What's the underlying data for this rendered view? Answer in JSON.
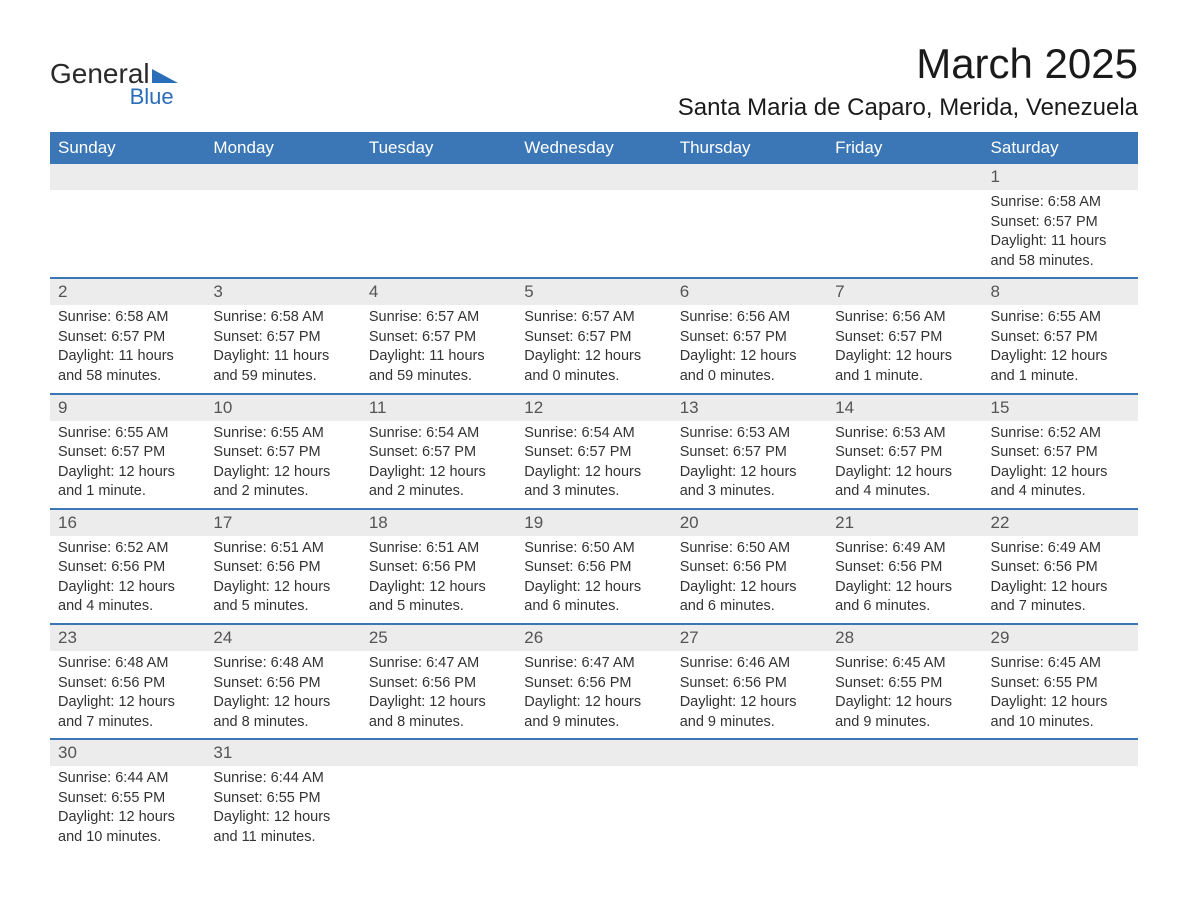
{
  "logo": {
    "word1": "General",
    "word2": "Blue"
  },
  "title": "March 2025",
  "location": "Santa Maria de Caparo, Merida, Venezuela",
  "colors": {
    "header_bg": "#3b77b7",
    "header_text": "#ffffff",
    "daynum_bg": "#ececec",
    "row_border": "#3b77b7",
    "body_text": "#333333",
    "logo_blue": "#2a6db8"
  },
  "typography": {
    "title_fontsize": 42,
    "location_fontsize": 24,
    "header_fontsize": 17,
    "daynum_fontsize": 17,
    "cell_fontsize": 14.5
  },
  "day_headers": [
    "Sunday",
    "Monday",
    "Tuesday",
    "Wednesday",
    "Thursday",
    "Friday",
    "Saturday"
  ],
  "weeks": [
    {
      "nums": [
        "",
        "",
        "",
        "",
        "",
        "",
        "1"
      ],
      "cells": [
        null,
        null,
        null,
        null,
        null,
        null,
        {
          "sunrise": "Sunrise: 6:58 AM",
          "sunset": "Sunset: 6:57 PM",
          "day1": "Daylight: 11 hours",
          "day2": "and 58 minutes."
        }
      ]
    },
    {
      "nums": [
        "2",
        "3",
        "4",
        "5",
        "6",
        "7",
        "8"
      ],
      "cells": [
        {
          "sunrise": "Sunrise: 6:58 AM",
          "sunset": "Sunset: 6:57 PM",
          "day1": "Daylight: 11 hours",
          "day2": "and 58 minutes."
        },
        {
          "sunrise": "Sunrise: 6:58 AM",
          "sunset": "Sunset: 6:57 PM",
          "day1": "Daylight: 11 hours",
          "day2": "and 59 minutes."
        },
        {
          "sunrise": "Sunrise: 6:57 AM",
          "sunset": "Sunset: 6:57 PM",
          "day1": "Daylight: 11 hours",
          "day2": "and 59 minutes."
        },
        {
          "sunrise": "Sunrise: 6:57 AM",
          "sunset": "Sunset: 6:57 PM",
          "day1": "Daylight: 12 hours",
          "day2": "and 0 minutes."
        },
        {
          "sunrise": "Sunrise: 6:56 AM",
          "sunset": "Sunset: 6:57 PM",
          "day1": "Daylight: 12 hours",
          "day2": "and 0 minutes."
        },
        {
          "sunrise": "Sunrise: 6:56 AM",
          "sunset": "Sunset: 6:57 PM",
          "day1": "Daylight: 12 hours",
          "day2": "and 1 minute."
        },
        {
          "sunrise": "Sunrise: 6:55 AM",
          "sunset": "Sunset: 6:57 PM",
          "day1": "Daylight: 12 hours",
          "day2": "and 1 minute."
        }
      ]
    },
    {
      "nums": [
        "9",
        "10",
        "11",
        "12",
        "13",
        "14",
        "15"
      ],
      "cells": [
        {
          "sunrise": "Sunrise: 6:55 AM",
          "sunset": "Sunset: 6:57 PM",
          "day1": "Daylight: 12 hours",
          "day2": "and 1 minute."
        },
        {
          "sunrise": "Sunrise: 6:55 AM",
          "sunset": "Sunset: 6:57 PM",
          "day1": "Daylight: 12 hours",
          "day2": "and 2 minutes."
        },
        {
          "sunrise": "Sunrise: 6:54 AM",
          "sunset": "Sunset: 6:57 PM",
          "day1": "Daylight: 12 hours",
          "day2": "and 2 minutes."
        },
        {
          "sunrise": "Sunrise: 6:54 AM",
          "sunset": "Sunset: 6:57 PM",
          "day1": "Daylight: 12 hours",
          "day2": "and 3 minutes."
        },
        {
          "sunrise": "Sunrise: 6:53 AM",
          "sunset": "Sunset: 6:57 PM",
          "day1": "Daylight: 12 hours",
          "day2": "and 3 minutes."
        },
        {
          "sunrise": "Sunrise: 6:53 AM",
          "sunset": "Sunset: 6:57 PM",
          "day1": "Daylight: 12 hours",
          "day2": "and 4 minutes."
        },
        {
          "sunrise": "Sunrise: 6:52 AM",
          "sunset": "Sunset: 6:57 PM",
          "day1": "Daylight: 12 hours",
          "day2": "and 4 minutes."
        }
      ]
    },
    {
      "nums": [
        "16",
        "17",
        "18",
        "19",
        "20",
        "21",
        "22"
      ],
      "cells": [
        {
          "sunrise": "Sunrise: 6:52 AM",
          "sunset": "Sunset: 6:56 PM",
          "day1": "Daylight: 12 hours",
          "day2": "and 4 minutes."
        },
        {
          "sunrise": "Sunrise: 6:51 AM",
          "sunset": "Sunset: 6:56 PM",
          "day1": "Daylight: 12 hours",
          "day2": "and 5 minutes."
        },
        {
          "sunrise": "Sunrise: 6:51 AM",
          "sunset": "Sunset: 6:56 PM",
          "day1": "Daylight: 12 hours",
          "day2": "and 5 minutes."
        },
        {
          "sunrise": "Sunrise: 6:50 AM",
          "sunset": "Sunset: 6:56 PM",
          "day1": "Daylight: 12 hours",
          "day2": "and 6 minutes."
        },
        {
          "sunrise": "Sunrise: 6:50 AM",
          "sunset": "Sunset: 6:56 PM",
          "day1": "Daylight: 12 hours",
          "day2": "and 6 minutes."
        },
        {
          "sunrise": "Sunrise: 6:49 AM",
          "sunset": "Sunset: 6:56 PM",
          "day1": "Daylight: 12 hours",
          "day2": "and 6 minutes."
        },
        {
          "sunrise": "Sunrise: 6:49 AM",
          "sunset": "Sunset: 6:56 PM",
          "day1": "Daylight: 12 hours",
          "day2": "and 7 minutes."
        }
      ]
    },
    {
      "nums": [
        "23",
        "24",
        "25",
        "26",
        "27",
        "28",
        "29"
      ],
      "cells": [
        {
          "sunrise": "Sunrise: 6:48 AM",
          "sunset": "Sunset: 6:56 PM",
          "day1": "Daylight: 12 hours",
          "day2": "and 7 minutes."
        },
        {
          "sunrise": "Sunrise: 6:48 AM",
          "sunset": "Sunset: 6:56 PM",
          "day1": "Daylight: 12 hours",
          "day2": "and 8 minutes."
        },
        {
          "sunrise": "Sunrise: 6:47 AM",
          "sunset": "Sunset: 6:56 PM",
          "day1": "Daylight: 12 hours",
          "day2": "and 8 minutes."
        },
        {
          "sunrise": "Sunrise: 6:47 AM",
          "sunset": "Sunset: 6:56 PM",
          "day1": "Daylight: 12 hours",
          "day2": "and 9 minutes."
        },
        {
          "sunrise": "Sunrise: 6:46 AM",
          "sunset": "Sunset: 6:56 PM",
          "day1": "Daylight: 12 hours",
          "day2": "and 9 minutes."
        },
        {
          "sunrise": "Sunrise: 6:45 AM",
          "sunset": "Sunset: 6:55 PM",
          "day1": "Daylight: 12 hours",
          "day2": "and 9 minutes."
        },
        {
          "sunrise": "Sunrise: 6:45 AM",
          "sunset": "Sunset: 6:55 PM",
          "day1": "Daylight: 12 hours",
          "day2": "and 10 minutes."
        }
      ]
    },
    {
      "nums": [
        "30",
        "31",
        "",
        "",
        "",
        "",
        ""
      ],
      "cells": [
        {
          "sunrise": "Sunrise: 6:44 AM",
          "sunset": "Sunset: 6:55 PM",
          "day1": "Daylight: 12 hours",
          "day2": "and 10 minutes."
        },
        {
          "sunrise": "Sunrise: 6:44 AM",
          "sunset": "Sunset: 6:55 PM",
          "day1": "Daylight: 12 hours",
          "day2": "and 11 minutes."
        },
        null,
        null,
        null,
        null,
        null
      ]
    }
  ]
}
